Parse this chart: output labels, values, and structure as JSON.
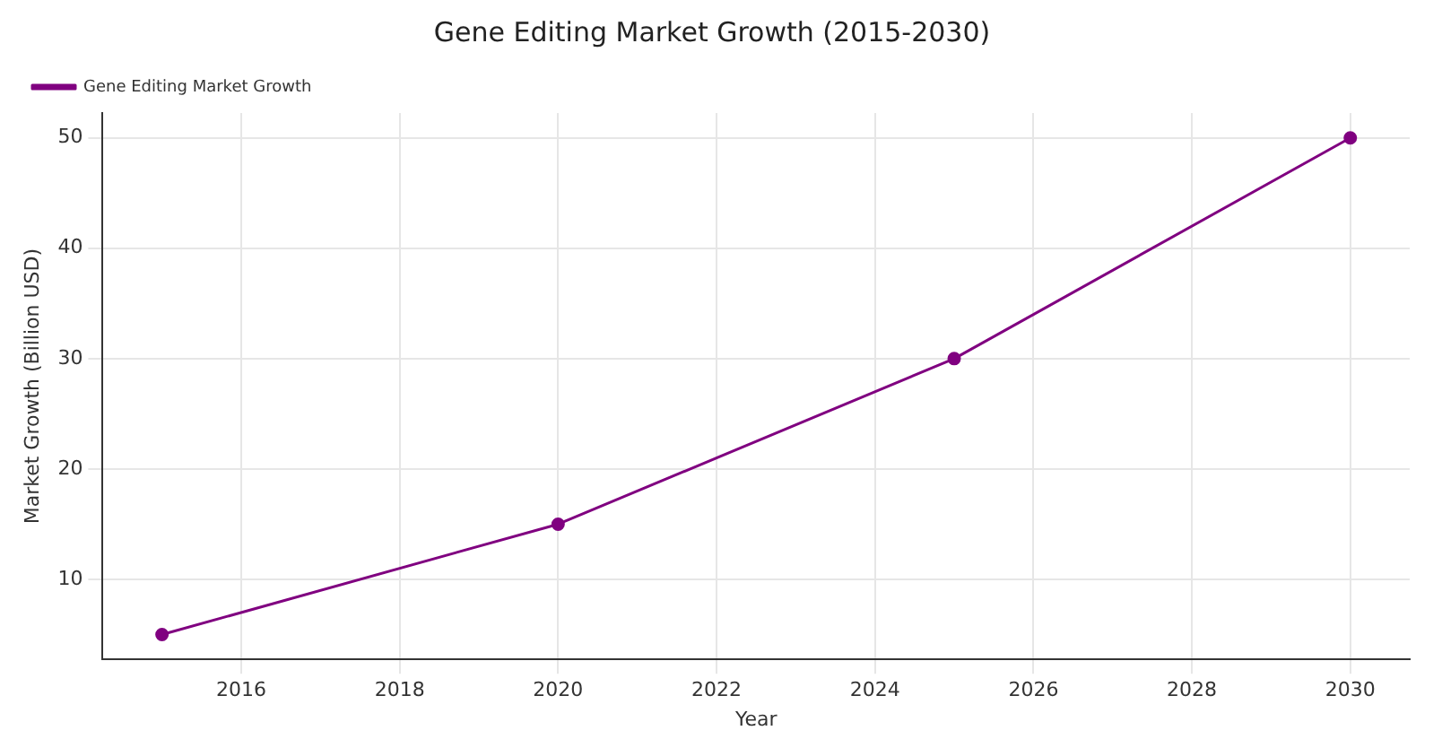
{
  "chart_data": {
    "type": "line",
    "title": "Gene Editing Market Growth (2015-2030)",
    "xlabel": "Year",
    "ylabel": "Market Growth (Billion USD)",
    "x": [
      2015,
      2020,
      2025,
      2030
    ],
    "series": [
      {
        "name": "Gene Editing Market Growth",
        "color": "#800080",
        "values": [
          5,
          15,
          30,
          50
        ]
      }
    ],
    "xlim": [
      2014.25,
      2030.75
    ],
    "xticks": [
      2016,
      2018,
      2020,
      2022,
      2024,
      2026,
      2028,
      2030
    ],
    "ylim": [
      2.75,
      52.25
    ],
    "yticks": [
      10,
      20,
      30,
      40,
      50
    ],
    "grid": true,
    "legend": "top left",
    "marker": "circle",
    "line_style": "solid"
  }
}
